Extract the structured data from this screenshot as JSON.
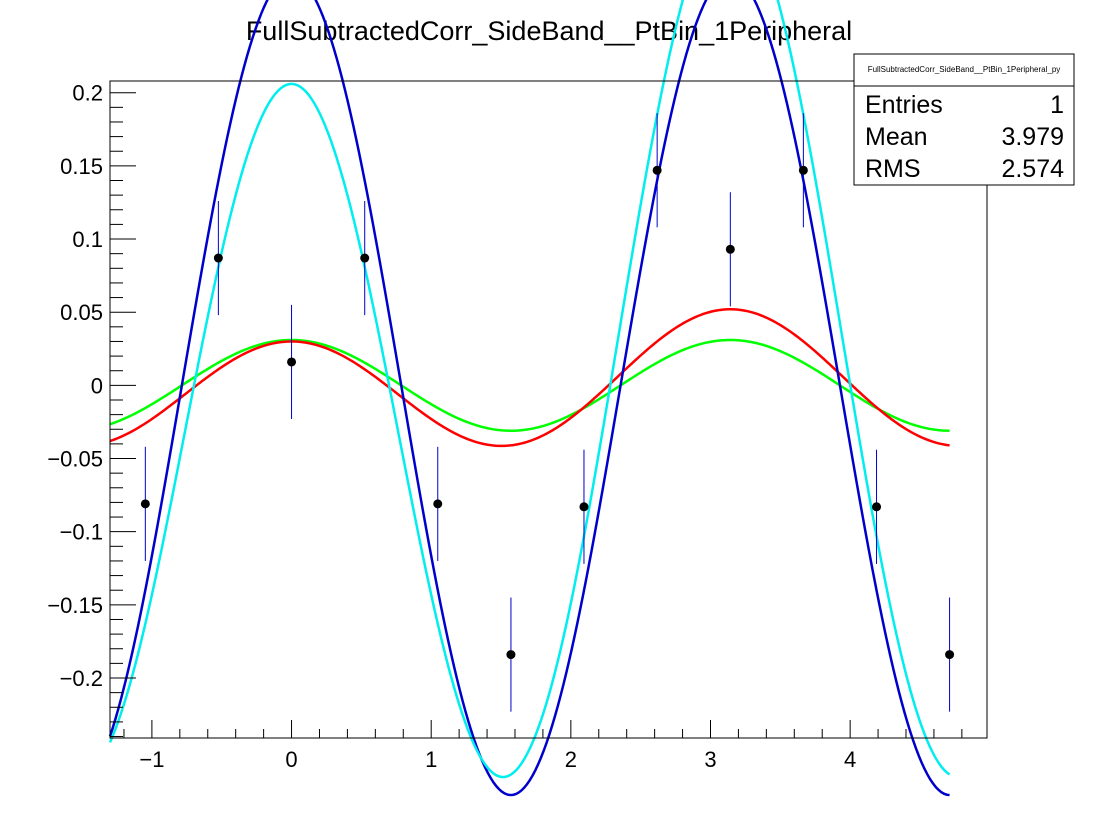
{
  "chart_data": {
    "type": "scatter",
    "title": "FullSubtractedCorr_SideBand__PtBin_1Peripheral",
    "xlabel": "",
    "ylabel": "",
    "xlim": [
      -1.3,
      4.98
    ],
    "ylim": [
      -0.241,
      0.208
    ],
    "x_ticks": [
      {
        "value": -1,
        "label": "−1"
      },
      {
        "value": 0,
        "label": "0"
      },
      {
        "value": 1,
        "label": "1"
      },
      {
        "value": 2,
        "label": "2"
      },
      {
        "value": 3,
        "label": "3"
      },
      {
        "value": 4,
        "label": "4"
      }
    ],
    "y_ticks": [
      {
        "value": 0.2,
        "label": "0.2"
      },
      {
        "value": 0.15,
        "label": "0.15"
      },
      {
        "value": 0.1,
        "label": "0.1"
      },
      {
        "value": 0.05,
        "label": "0.05"
      },
      {
        "value": 0,
        "label": "0"
      },
      {
        "value": -0.05,
        "label": "−0.05"
      },
      {
        "value": -0.1,
        "label": "−0.1"
      },
      {
        "value": -0.15,
        "label": "−0.15"
      },
      {
        "value": -0.2,
        "label": "−0.2"
      }
    ],
    "points": [
      {
        "x": -1.047,
        "y": -0.081,
        "err": 0.039
      },
      {
        "x": -0.524,
        "y": 0.087,
        "err": 0.039
      },
      {
        "x": 0.0,
        "y": 0.016,
        "err": 0.039
      },
      {
        "x": 0.524,
        "y": 0.087,
        "err": 0.039
      },
      {
        "x": 1.047,
        "y": -0.081,
        "err": 0.039
      },
      {
        "x": 1.571,
        "y": -0.184,
        "err": 0.039
      },
      {
        "x": 2.094,
        "y": -0.083,
        "err": 0.039
      },
      {
        "x": 2.618,
        "y": 0.147,
        "err": 0.039
      },
      {
        "x": 3.142,
        "y": 0.093,
        "err": 0.039
      },
      {
        "x": 3.665,
        "y": 0.147,
        "err": 0.039
      },
      {
        "x": 4.189,
        "y": -0.083,
        "err": 0.039
      },
      {
        "x": 4.712,
        "y": -0.184,
        "err": 0.039
      }
    ],
    "curves": [
      {
        "color": "#00ff00",
        "x_range": [
          -1.3,
          4.712
        ],
        "terms": [
          {
            "n": 2,
            "a": 0.0155
          }
        ]
      },
      {
        "color": "#ff0000",
        "x_range": [
          -1.3,
          4.712
        ],
        "terms": [
          {
            "n": 1,
            "a": -0.0055
          },
          {
            "n": 2,
            "a": 0.0205
          }
        ]
      },
      {
        "color": "#0000cc",
        "x_range": [
          -1.3,
          4.712
        ],
        "terms": [
          {
            "n": 2,
            "a": 0.14
          }
        ]
      },
      {
        "color": "#00eeee",
        "x_range": [
          -1.3,
          4.712
        ],
        "terms": [
          {
            "n": 1,
            "a": -0.03
          },
          {
            "n": 2,
            "a": 0.133
          }
        ]
      }
    ],
    "grid": false,
    "legend": "none",
    "colors": {
      "points": "#000000",
      "error_bars": "#0000cc",
      "frame": "#000000"
    }
  },
  "stats_box": {
    "title": "FullSubtractedCorr_SideBand__PtBin_1Peripheral_py",
    "rows": [
      {
        "label": "Entries",
        "value": "1"
      },
      {
        "label": "Mean",
        "value": "3.979"
      },
      {
        "label": "RMS",
        "value": "2.574"
      }
    ]
  }
}
